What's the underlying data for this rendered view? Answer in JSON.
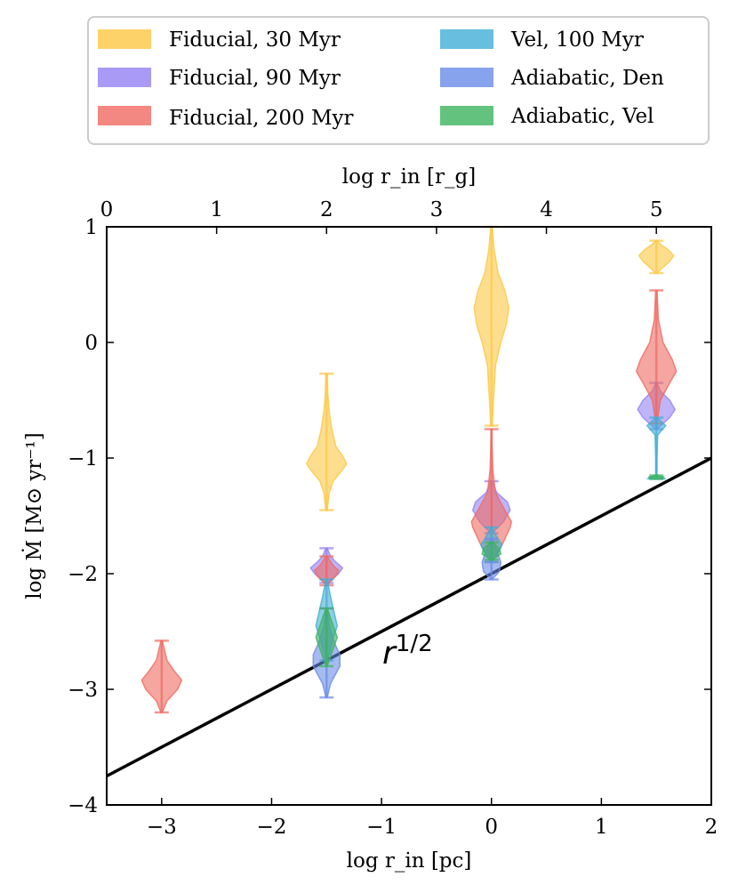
{
  "chart_data": {
    "type": "violin",
    "xlabel": "log r_in [pc]",
    "ylabel": "log Ṁ [M⊙ yr⁻¹]",
    "top_xlabel": "log r_in [r_g]",
    "xlim": [
      -3.5,
      2
    ],
    "ylim": [
      -4,
      1
    ],
    "top_xlim": [
      0,
      5.5
    ],
    "x_ticks": [
      -3,
      -2,
      -1,
      0,
      1,
      2
    ],
    "x_tick_labels": [
      "−3",
      "−2",
      "−1",
      "0",
      "1",
      "2"
    ],
    "y_ticks": [
      -4,
      -3,
      -2,
      -1,
      0,
      1
    ],
    "y_tick_labels": [
      "−4",
      "−3",
      "−2",
      "−1",
      "0",
      "1"
    ],
    "top_x_ticks": [
      0,
      1,
      2,
      3,
      4,
      5
    ],
    "top_x_tick_labels": [
      "0",
      "1",
      "2",
      "3",
      "4",
      "5"
    ],
    "legend": {
      "position": "top",
      "columns": 2,
      "entries": [
        {
          "label": "Fiducial, 30 Myr",
          "color": "#fcc844"
        },
        {
          "label": "Fiducial, 90 Myr",
          "color": "#9482f2"
        },
        {
          "label": "Fiducial, 200 Myr",
          "color": "#ef6a62"
        },
        {
          "label": "Vel, 100 Myr",
          "color": "#41aed6"
        },
        {
          "label": "Adiabatic, Den",
          "color": "#6a8ce8"
        },
        {
          "label": "Adiabatic, Vel",
          "color": "#3db35f"
        }
      ]
    },
    "reference_line": {
      "label": "r^{1/2}",
      "label_base": "r",
      "label_exp": "1/2",
      "slope": 0.5,
      "intercept": -2.0,
      "color": "#000000"
    },
    "series": [
      {
        "name": "Fiducial, 30 Myr",
        "color": "#fcc844",
        "violins": [
          {
            "x": -1.5,
            "min": -1.45,
            "max": -0.27,
            "y": [
              -1.45,
              -1.3,
              -1.2,
              -1.1,
              -1.05,
              -0.98,
              -0.9,
              -0.75,
              -0.6,
              -0.45,
              -0.27
            ],
            "w": [
              0.005,
              0.02,
              0.05,
              0.12,
              0.15,
              0.12,
              0.07,
              0.04,
              0.02,
              0.01,
              0.005
            ]
          },
          {
            "x": 0.0,
            "min": -0.72,
            "max": 1.0,
            "y": [
              -0.72,
              -0.5,
              -0.2,
              0.0,
              0.15,
              0.3,
              0.45,
              0.6,
              0.8,
              1.0
            ],
            "w": [
              0.005,
              0.015,
              0.03,
              0.07,
              0.11,
              0.13,
              0.1,
              0.05,
              0.02,
              0.005
            ]
          },
          {
            "x": 1.5,
            "min": 0.6,
            "max": 0.88,
            "y": [
              0.6,
              0.65,
              0.7,
              0.75,
              0.8,
              0.85,
              0.88
            ],
            "w": [
              0.005,
              0.05,
              0.1,
              0.13,
              0.09,
              0.03,
              0.005
            ]
          }
        ]
      },
      {
        "name": "Fiducial, 90 Myr",
        "color": "#9482f2",
        "violins": [
          {
            "x": -1.5,
            "min": -2.08,
            "max": -1.78,
            "y": [
              -2.08,
              -2.0,
              -1.95,
              -1.9,
              -1.85,
              -1.78
            ],
            "w": [
              0.005,
              0.09,
              0.12,
              0.07,
              0.03,
              0.005
            ]
          },
          {
            "x": 0.0,
            "min": -1.65,
            "max": -1.2,
            "y": [
              -1.65,
              -1.55,
              -1.45,
              -1.38,
              -1.3,
              -1.2
            ],
            "w": [
              0.005,
              0.09,
              0.14,
              0.12,
              0.04,
              0.005
            ]
          },
          {
            "x": 1.5,
            "min": -0.75,
            "max": -0.35,
            "y": [
              -0.75,
              -0.65,
              -0.58,
              -0.5,
              -0.42,
              -0.35
            ],
            "w": [
              0.005,
              0.1,
              0.14,
              0.1,
              0.03,
              0.005
            ]
          }
        ]
      },
      {
        "name": "Fiducial, 200 Myr",
        "color": "#ef6a62",
        "violins": [
          {
            "x": -3.0,
            "min": -3.2,
            "max": -2.58,
            "y": [
              -3.2,
              -3.1,
              -3.0,
              -2.92,
              -2.85,
              -2.75,
              -2.58
            ],
            "w": [
              0.005,
              0.04,
              0.12,
              0.15,
              0.1,
              0.04,
              0.005
            ]
          },
          {
            "x": -1.5,
            "min": -2.1,
            "max": -1.85,
            "y": [
              -2.1,
              -2.02,
              -1.97,
              -1.93,
              -1.85
            ],
            "w": [
              0.005,
              0.07,
              0.09,
              0.05,
              0.005
            ]
          },
          {
            "x": 0.0,
            "min": -1.9,
            "max": -0.75,
            "y": [
              -1.9,
              -1.75,
              -1.6,
              -1.55,
              -1.45,
              -1.3,
              -1.1,
              -0.9,
              -0.75
            ],
            "w": [
              0.005,
              0.08,
              0.14,
              0.15,
              0.1,
              0.03,
              0.01,
              0.005,
              0.003
            ]
          },
          {
            "x": 1.5,
            "min": -0.7,
            "max": 0.45,
            "y": [
              -0.7,
              -0.5,
              -0.35,
              -0.25,
              -0.15,
              0.0,
              0.2,
              0.45
            ],
            "w": [
              0.005,
              0.03,
              0.1,
              0.15,
              0.12,
              0.05,
              0.015,
              0.005
            ]
          }
        ]
      },
      {
        "name": "Vel, 100 Myr",
        "color": "#41aed6",
        "violins": [
          {
            "x": -1.5,
            "min": -2.75,
            "max": -2.05,
            "y": [
              -2.75,
              -2.6,
              -2.45,
              -2.35,
              -2.2,
              -2.05
            ],
            "w": [
              0.005,
              0.04,
              0.08,
              0.06,
              0.03,
              0.005
            ]
          },
          {
            "x": 0.0,
            "min": -1.9,
            "max": -1.6,
            "y": [
              -1.9,
              -1.8,
              -1.75,
              -1.7,
              -1.6
            ],
            "w": [
              0.005,
              0.06,
              0.08,
              0.05,
              0.005
            ]
          },
          {
            "x": 1.5,
            "min": -1.18,
            "max": -0.65,
            "y": [
              -1.18,
              -1.15,
              -1.0,
              -0.8,
              -0.72,
              -0.65
            ],
            "w": [
              0.07,
              0.005,
              0.005,
              0.01,
              0.07,
              0.005
            ]
          }
        ]
      },
      {
        "name": "Adiabatic, Den",
        "color": "#6a8ce8",
        "violins": [
          {
            "x": -1.5,
            "min": -3.07,
            "max": -2.3,
            "y": [
              -3.07,
              -2.95,
              -2.8,
              -2.7,
              -2.6,
              -2.45,
              -2.3
            ],
            "w": [
              0.005,
              0.03,
              0.1,
              0.1,
              0.06,
              0.02,
              0.005
            ]
          },
          {
            "x": 0.0,
            "min": -2.05,
            "max": -1.7,
            "y": [
              -2.05,
              -1.98,
              -1.9,
              -1.8,
              -1.7
            ],
            "w": [
              0.005,
              0.06,
              0.07,
              0.04,
              0.005
            ]
          }
        ]
      },
      {
        "name": "Adiabatic, Vel",
        "color": "#3db35f",
        "violins": [
          {
            "x": -1.5,
            "min": -2.8,
            "max": -2.3,
            "y": [
              -2.8,
              -2.65,
              -2.55,
              -2.45,
              -2.3
            ],
            "w": [
              0.005,
              0.05,
              0.08,
              0.05,
              0.005
            ]
          },
          {
            "x": 0.0,
            "min": -1.88,
            "max": -1.73,
            "y": [
              -1.88,
              -1.83,
              -1.78,
              -1.73
            ],
            "w": [
              0.005,
              0.07,
              0.06,
              0.005
            ]
          },
          {
            "x": 1.5,
            "min": -1.18,
            "max": -1.15,
            "y": [
              -1.18,
              -1.165,
              -1.15
            ],
            "w": [
              0.005,
              0.06,
              0.005
            ]
          }
        ]
      }
    ]
  }
}
